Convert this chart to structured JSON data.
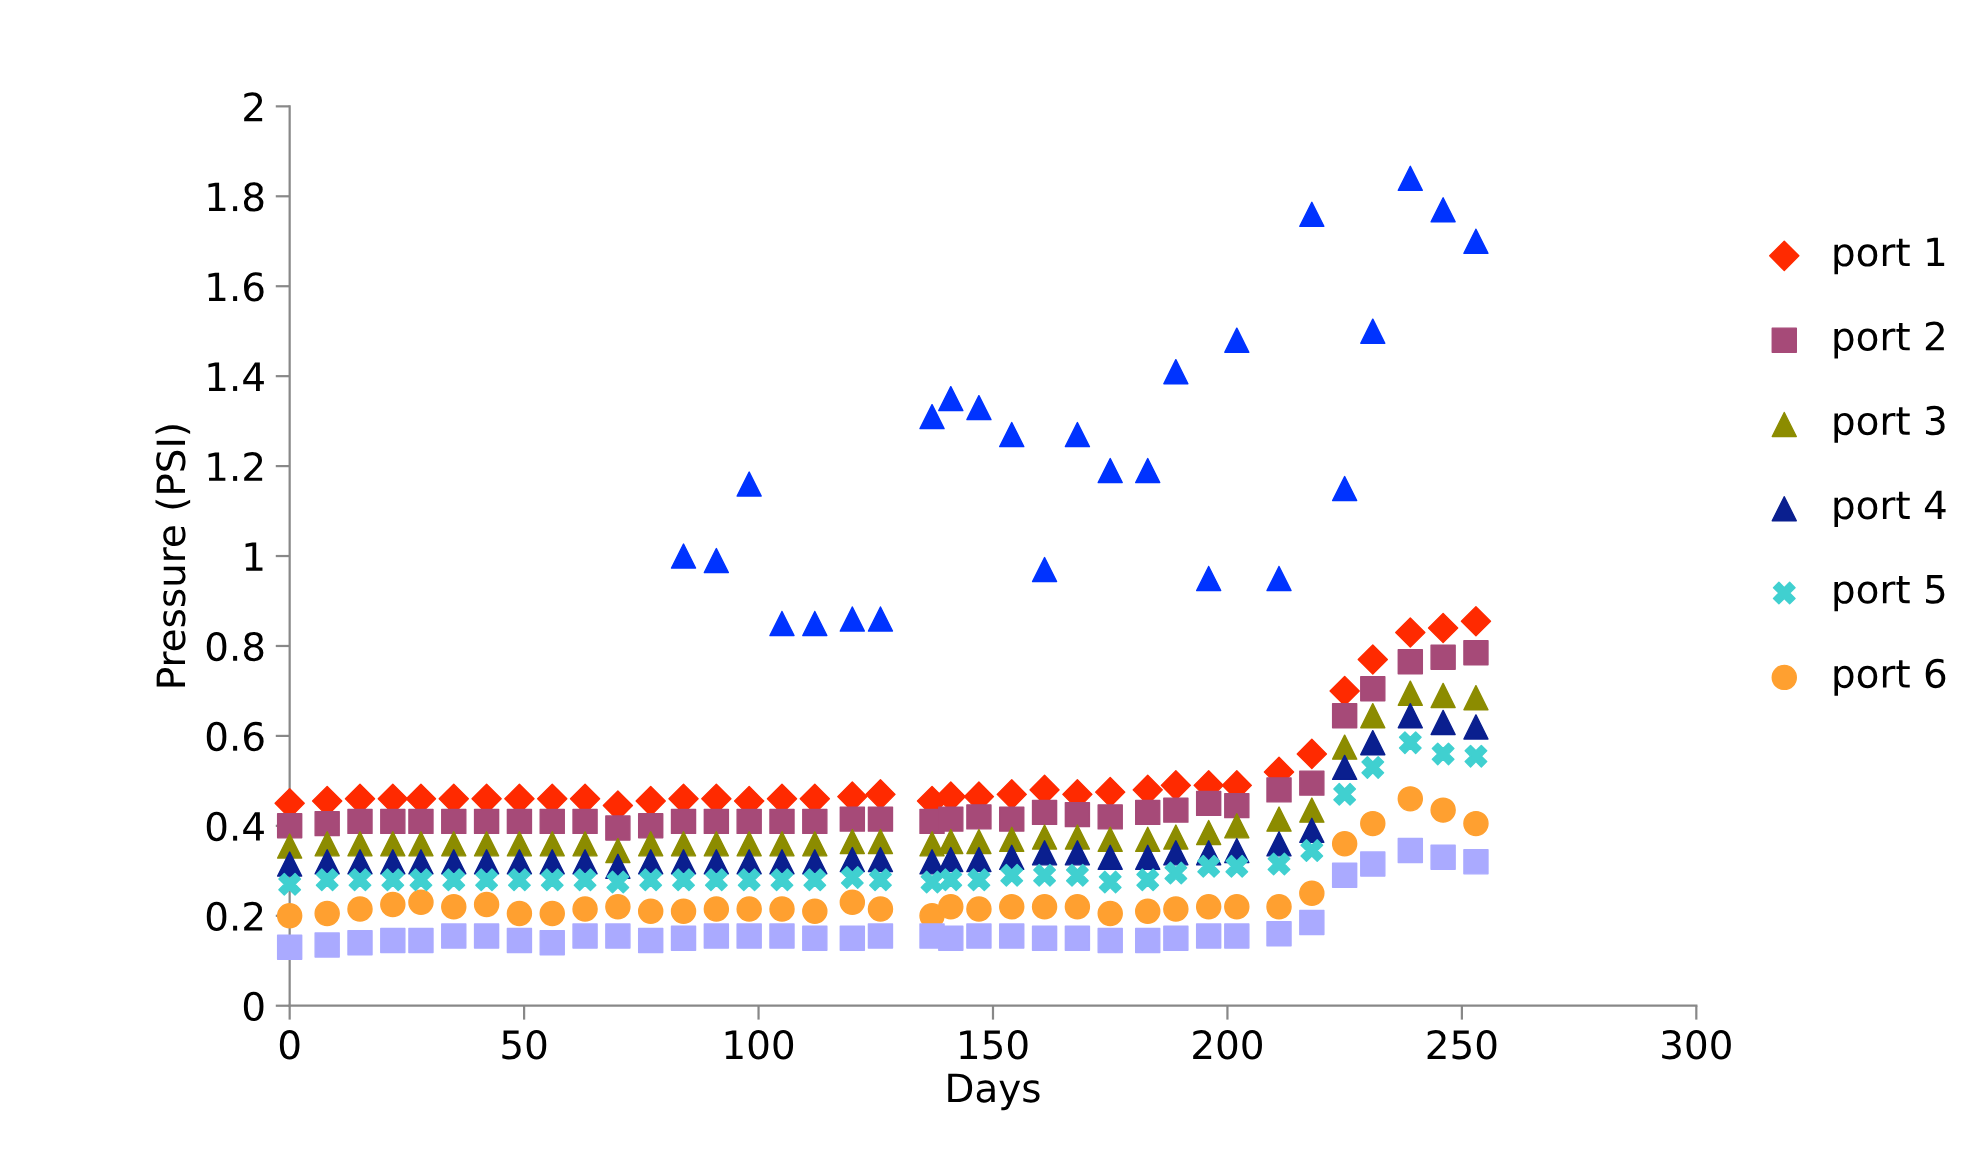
{
  "chart_data": {
    "type": "scatter",
    "xlabel": "Days",
    "ylabel": "Pressure (PSI)",
    "xlim": [
      0,
      300
    ],
    "xticks": [
      0,
      50,
      100,
      150,
      200,
      250,
      300
    ],
    "ylim": [
      0,
      2
    ],
    "yticks": [
      0,
      {
        "value": 0.2,
        "label": "0.2"
      },
      {
        "value": 0.4,
        "label": "0.4"
      },
      {
        "value": 0.6,
        "label": "0.6"
      },
      {
        "value": 0.8,
        "label": "0.8"
      },
      1,
      {
        "value": 1.2,
        "label": "1.2"
      },
      {
        "value": 1.4,
        "label": "1.4"
      },
      {
        "value": 1.6,
        "label": "1.6"
      },
      {
        "value": 1.8,
        "label": "1.8"
      },
      2
    ],
    "grid": false,
    "legend": "right",
    "x": [
      0,
      8,
      15,
      22,
      28,
      35,
      42,
      49,
      56,
      63,
      70,
      77,
      84,
      91,
      98,
      105,
      112,
      120,
      126,
      137,
      141,
      147,
      154,
      161,
      168,
      175,
      183,
      189,
      196,
      202,
      211,
      218,
      225,
      231,
      239,
      246,
      253
    ],
    "series": [
      {
        "name": "port 1",
        "color": "#ff2a00",
        "marker": "diamond",
        "values": [
          0.45,
          0.455,
          0.46,
          0.46,
          0.46,
          0.46,
          0.46,
          0.46,
          0.46,
          0.46,
          0.445,
          0.455,
          0.46,
          0.46,
          0.455,
          0.46,
          0.46,
          0.465,
          0.47,
          0.455,
          0.465,
          0.465,
          0.47,
          0.48,
          0.47,
          0.475,
          0.48,
          0.49,
          0.49,
          0.49,
          0.52,
          0.56,
          0.7,
          0.77,
          0.83,
          0.84,
          0.855
        ]
      },
      {
        "name": "port 2",
        "color": "#a64a78",
        "marker": "square",
        "values": [
          0.4,
          0.405,
          0.41,
          0.41,
          0.41,
          0.41,
          0.41,
          0.41,
          0.41,
          0.41,
          0.395,
          0.4,
          0.41,
          0.41,
          0.41,
          0.41,
          0.41,
          0.415,
          0.415,
          0.41,
          0.415,
          0.42,
          0.415,
          0.43,
          0.425,
          0.42,
          0.43,
          0.435,
          0.45,
          0.445,
          0.48,
          0.495,
          0.645,
          0.705,
          0.765,
          0.775,
          0.785
        ]
      },
      {
        "name": "port 3",
        "color": "#8c8c00",
        "marker": "triangle",
        "values": [
          0.355,
          0.36,
          0.36,
          0.36,
          0.36,
          0.36,
          0.36,
          0.36,
          0.36,
          0.36,
          0.345,
          0.36,
          0.36,
          0.36,
          0.36,
          0.36,
          0.36,
          0.365,
          0.365,
          0.36,
          0.365,
          0.365,
          0.37,
          0.375,
          0.375,
          0.37,
          0.37,
          0.375,
          0.385,
          0.4,
          0.415,
          0.435,
          0.575,
          0.645,
          0.695,
          0.69,
          0.685
        ]
      },
      {
        "name": "port 4",
        "color": "#0a1f8f",
        "marker": "triangle",
        "values": [
          0.315,
          0.32,
          0.32,
          0.32,
          0.32,
          0.32,
          0.32,
          0.32,
          0.32,
          0.32,
          0.31,
          0.32,
          0.32,
          0.32,
          0.32,
          0.32,
          0.32,
          0.325,
          0.325,
          0.32,
          0.325,
          0.325,
          0.33,
          0.34,
          0.34,
          0.33,
          0.33,
          0.34,
          0.34,
          0.345,
          0.36,
          0.39,
          0.53,
          0.585,
          0.645,
          0.63,
          0.62
        ]
      },
      {
        "name": "port 5",
        "color": "#40d0d0",
        "marker": "cross",
        "values": [
          0.27,
          0.28,
          0.28,
          0.28,
          0.28,
          0.28,
          0.28,
          0.28,
          0.28,
          0.28,
          0.275,
          0.28,
          0.28,
          0.28,
          0.28,
          0.28,
          0.28,
          0.285,
          0.28,
          0.275,
          0.28,
          0.28,
          0.29,
          0.29,
          0.29,
          0.275,
          0.28,
          0.295,
          0.31,
          0.31,
          0.315,
          0.345,
          0.47,
          0.53,
          0.585,
          0.56,
          0.555
        ]
      },
      {
        "name": "port 6",
        "color": "#ffa030",
        "marker": "circle",
        "values": [
          0.2,
          0.205,
          0.215,
          0.225,
          0.23,
          0.22,
          0.225,
          0.205,
          0.205,
          0.215,
          0.22,
          0.21,
          0.21,
          0.215,
          0.215,
          0.215,
          0.21,
          0.23,
          0.215,
          0.2,
          0.22,
          0.215,
          0.22,
          0.22,
          0.22,
          0.205,
          0.21,
          0.215,
          0.22,
          0.22,
          0.22,
          0.25,
          0.36,
          0.405,
          0.46,
          0.435,
          0.405
        ]
      },
      {
        "color": "#aaaaff",
        "marker": "square",
        "values": [
          0.13,
          0.135,
          0.14,
          0.145,
          0.145,
          0.155,
          0.155,
          0.145,
          0.14,
          0.155,
          0.155,
          0.145,
          0.15,
          0.155,
          0.155,
          0.155,
          0.15,
          0.15,
          0.155,
          0.155,
          0.15,
          0.155,
          0.155,
          0.15,
          0.15,
          0.145,
          0.145,
          0.15,
          0.155,
          0.155,
          0.16,
          0.185,
          0.29,
          0.315,
          0.345,
          0.33,
          0.32
        ]
      },
      {
        "color": "#0033ff",
        "marker": "triangle",
        "x": [
          84,
          91,
          98,
          105,
          112,
          120,
          126,
          137,
          141,
          147,
          154,
          161,
          168,
          175,
          183,
          189,
          196,
          202,
          211,
          218,
          225,
          231,
          239,
          246,
          253
        ],
        "values": [
          1.0,
          0.99,
          1.16,
          0.85,
          0.85,
          0.86,
          0.86,
          1.31,
          1.35,
          1.33,
          1.27,
          0.97,
          1.27,
          1.19,
          1.19,
          1.41,
          0.95,
          1.48,
          0.95,
          1.76,
          1.15,
          1.5,
          1.84,
          1.77,
          1.7
        ]
      }
    ]
  }
}
